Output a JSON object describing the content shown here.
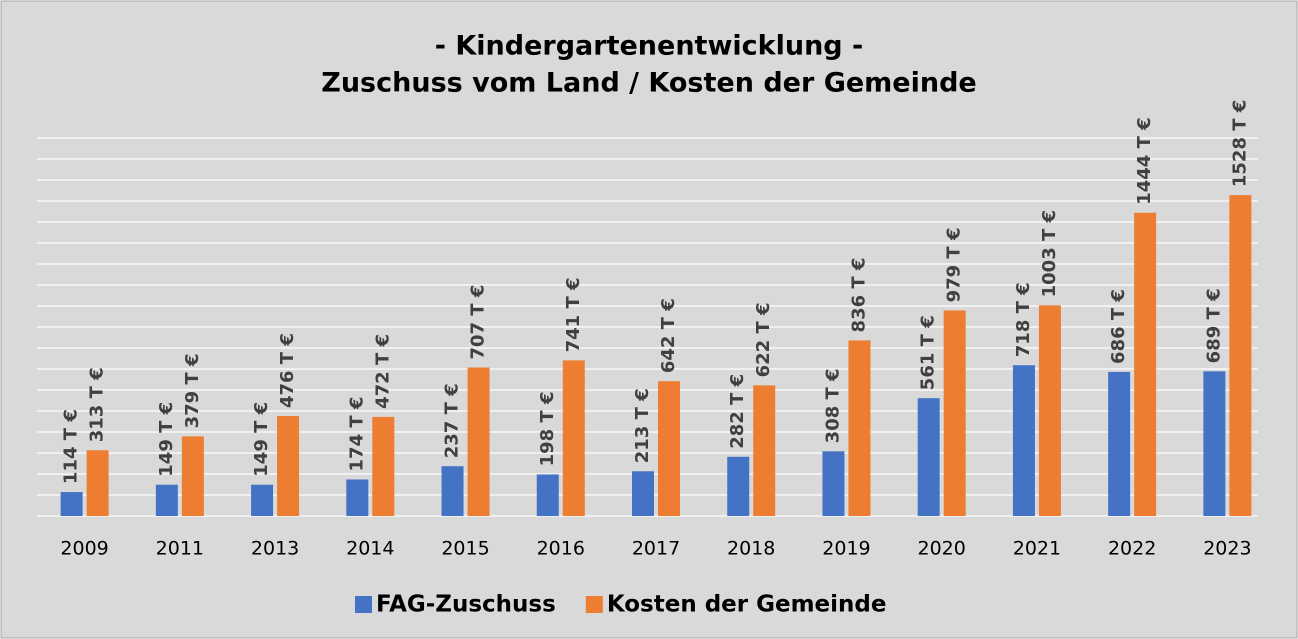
{
  "chart_data": {
    "type": "bar",
    "title": [
      "- Kindergartenentwicklung -",
      "Zuschuss vom Land / Kosten der Gemeinde"
    ],
    "categories": [
      "2009",
      "2011",
      "2013",
      "2014",
      "2015",
      "2016",
      "2017",
      "2018",
      "2019",
      "2020",
      "2021",
      "2022",
      "2023"
    ],
    "series": [
      {
        "name": "FAG-Zuschuss",
        "color": "#4472c4",
        "values": [
          114,
          149,
          149,
          174,
          237,
          198,
          213,
          282,
          308,
          561,
          718,
          686,
          689
        ],
        "value_labels": [
          "114 T €",
          "149 T €",
          "149 T €",
          "174 T €",
          "237 T €",
          "198 T €",
          "213 T €",
          "282 T €",
          "308 T €",
          "561 T €",
          "718 T €",
          "686 T €",
          "689 T €"
        ]
      },
      {
        "name": "Kosten der Gemeinde",
        "color": "#ed7d31",
        "values": [
          313,
          379,
          476,
          472,
          707,
          741,
          642,
          622,
          836,
          979,
          1003,
          1444,
          1528
        ],
        "value_labels": [
          "313 T €",
          "379 T €",
          "476 T €",
          "472 T €",
          "707 T €",
          "741 T €",
          "642 T €",
          "622 T €",
          "836 T €",
          "979 T €",
          "1003 T €",
          "1444 T €",
          "1528 T €"
        ]
      }
    ],
    "ylim": [
      0,
      1800
    ],
    "yticks": [
      0,
      100,
      200,
      300,
      400,
      500,
      600,
      700,
      800,
      900,
      1000,
      1100,
      1200,
      1300,
      1400,
      1500,
      1600,
      1700,
      1800
    ],
    "grid": true,
    "legend": "bottom"
  }
}
